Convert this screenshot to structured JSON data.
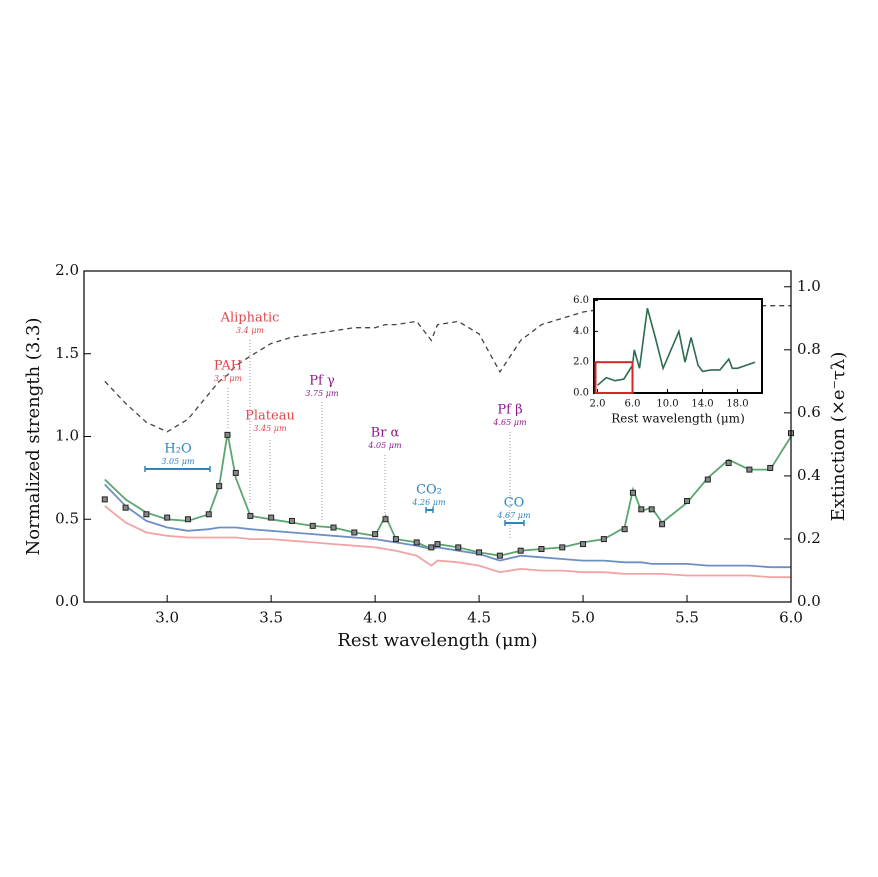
{
  "chart_data": [
    {
      "type": "line",
      "xlabel": "Rest wavelength (μm)",
      "ylabel": "Normalized strength (3.3)",
      "y2label": "Extinction (×e⁻τλ)",
      "xlim": [
        2.6,
        6.0
      ],
      "ylim": [
        0,
        2.0
      ],
      "y2lim": [
        0,
        1.05
      ],
      "xticks": [
        {
          "value": 3,
          "label": "3.0"
        },
        {
          "value": 3.5,
          "label": "3.5"
        },
        {
          "value": 4,
          "label": "4.0"
        },
        {
          "value": 4.5,
          "label": "4.5"
        },
        {
          "value": 5,
          "label": "5.0"
        },
        {
          "value": 5.5,
          "label": "5.5"
        },
        {
          "value": 6,
          "label": "6.0"
        }
      ],
      "yticks": [
        {
          "value": 0,
          "label": "0.0"
        },
        {
          "value": 0.5,
          "label": "0.5"
        },
        {
          "value": 1,
          "label": "1.0"
        },
        {
          "value": 1.5,
          "label": "1.5"
        },
        {
          "value": 2,
          "label": "2.0"
        }
      ],
      "y2ticks": [
        {
          "value": 0,
          "label": "0.0"
        },
        {
          "value": 0.2,
          "label": "0.2"
        },
        {
          "value": 0.4,
          "label": "0.4"
        },
        {
          "value": 0.6,
          "label": "0.6"
        },
        {
          "value": 0.8,
          "label": "0.8"
        },
        {
          "value": 1,
          "label": "1.0"
        }
      ],
      "x": [
        2.7,
        2.8,
        2.9,
        3.0,
        3.1,
        3.2,
        3.25,
        3.29,
        3.33,
        3.4,
        3.5,
        3.6,
        3.7,
        3.8,
        3.9,
        4.0,
        4.05,
        4.1,
        4.2,
        4.27,
        4.3,
        4.4,
        4.5,
        4.6,
        4.7,
        4.8,
        4.9,
        5.0,
        5.1,
        5.2,
        5.24,
        5.28,
        5.33,
        5.38,
        5.5,
        5.6,
        5.7,
        5.8,
        5.9,
        6.0
      ],
      "series": [
        {
          "style": "dashed",
          "axis": "y2",
          "color": "#444444",
          "values": [
            0.7,
            0.63,
            0.57,
            0.54,
            0.58,
            0.66,
            0.7,
            0.72,
            0.75,
            0.78,
            0.82,
            0.84,
            0.85,
            0.86,
            0.87,
            0.87,
            0.88,
            0.88,
            0.89,
            0.83,
            0.88,
            0.89,
            0.85,
            0.73,
            0.83,
            0.88,
            0.9,
            0.92,
            0.93,
            0.93,
            0.93,
            0.93,
            0.94,
            0.94,
            0.94,
            0.94,
            0.94,
            0.94,
            0.94,
            0.94
          ]
        },
        {
          "style": "line",
          "color": "#f4a3a3",
          "values": [
            0.58,
            0.48,
            0.42,
            0.4,
            0.39,
            0.39,
            0.39,
            0.39,
            0.39,
            0.38,
            0.38,
            0.37,
            0.36,
            0.35,
            0.34,
            0.33,
            0.32,
            0.31,
            0.28,
            0.22,
            0.25,
            0.24,
            0.22,
            0.18,
            0.2,
            0.19,
            0.19,
            0.18,
            0.18,
            0.17,
            0.17,
            0.17,
            0.17,
            0.17,
            0.16,
            0.16,
            0.16,
            0.16,
            0.15,
            0.15
          ]
        },
        {
          "style": "line",
          "color": "#6d8fc4",
          "values": [
            0.71,
            0.58,
            0.49,
            0.45,
            0.43,
            0.44,
            0.45,
            0.45,
            0.45,
            0.44,
            0.43,
            0.42,
            0.41,
            0.4,
            0.39,
            0.38,
            0.37,
            0.36,
            0.34,
            0.32,
            0.33,
            0.31,
            0.29,
            0.25,
            0.28,
            0.27,
            0.26,
            0.25,
            0.25,
            0.24,
            0.24,
            0.24,
            0.23,
            0.23,
            0.23,
            0.22,
            0.22,
            0.22,
            0.21,
            0.21
          ]
        },
        {
          "style": "line",
          "color": "#5aa66f",
          "values": [
            0.74,
            0.62,
            0.54,
            0.5,
            0.49,
            0.53,
            0.7,
            1.02,
            0.75,
            0.52,
            0.5,
            0.48,
            0.46,
            0.45,
            0.42,
            0.4,
            0.52,
            0.38,
            0.36,
            0.32,
            0.35,
            0.33,
            0.3,
            0.28,
            0.31,
            0.32,
            0.33,
            0.36,
            0.38,
            0.45,
            0.68,
            0.55,
            0.57,
            0.48,
            0.6,
            0.75,
            0.86,
            0.8,
            0.8,
            1.0
          ]
        },
        {
          "style": "markers",
          "color": "#888888",
          "values": [
            0.62,
            0.57,
            0.53,
            0.51,
            0.5,
            0.53,
            0.7,
            1.01,
            0.78,
            0.52,
            0.51,
            0.49,
            0.46,
            0.45,
            0.42,
            0.41,
            0.5,
            0.38,
            0.36,
            0.33,
            0.35,
            0.33,
            0.3,
            0.28,
            0.31,
            0.32,
            0.33,
            0.35,
            0.38,
            0.44,
            0.66,
            0.56,
            0.56,
            0.47,
            0.61,
            0.74,
            0.84,
            0.8,
            0.81,
            1.02
          ]
        }
      ],
      "annotations": [
        {
          "label": "Aliphatic",
          "note": "3.4 μm",
          "color": "#e0474c"
        },
        {
          "label": "PAH",
          "note": "3.3 μm",
          "color": "#e0474c"
        },
        {
          "label": "Plateau",
          "note": "3.45 μm",
          "color": "#e0474c"
        },
        {
          "label": "Pf γ",
          "note": "3.75 μm",
          "color": "#8b1a89"
        },
        {
          "label": "Br α",
          "note": "4.05 μm",
          "color": "#8b1a89"
        },
        {
          "label": "Pf β",
          "note": "4.65 μm",
          "color": "#8b1a89"
        },
        {
          "label": "H₂O",
          "note": "3.05 μm",
          "color": "#2e86c1"
        },
        {
          "label": "CO₂",
          "note": "4.26 μm",
          "color": "#2e86c1"
        },
        {
          "label": "CO",
          "note": "4.67 μm",
          "color": "#2e86c1"
        }
      ]
    },
    {
      "type": "line",
      "xlabel": "Rest wavelength (μm)",
      "xlim": [
        1.6,
        20.8
      ],
      "ylim": [
        0,
        6.1
      ],
      "xticks": [
        {
          "value": 2,
          "label": "2.0"
        },
        {
          "value": 6,
          "label": "6.0"
        },
        {
          "value": 10,
          "label": "10.0"
        },
        {
          "value": 14,
          "label": "14.0"
        },
        {
          "value": 18,
          "label": "18.0"
        }
      ],
      "yticks": [
        {
          "value": 0,
          "label": "0.0"
        },
        {
          "value": 2,
          "label": "2.0"
        },
        {
          "value": 4,
          "label": "4.0"
        },
        {
          "value": 6,
          "label": "6.0"
        }
      ],
      "x": [
        2,
        3,
        4,
        5,
        6,
        6.2,
        6.8,
        7.7,
        8.6,
        9.5,
        11.3,
        12,
        12.7,
        13.5,
        14,
        15,
        16,
        17,
        17.4,
        18,
        19,
        20
      ],
      "series": [
        {
          "style": "line",
          "color": "#2d6b4f",
          "values": [
            0.5,
            1.0,
            0.8,
            0.9,
            1.8,
            2.8,
            1.6,
            5.5,
            3.6,
            1.6,
            4.0,
            2.0,
            3.6,
            1.8,
            1.4,
            1.5,
            1.5,
            2.2,
            1.6,
            1.6,
            1.8,
            2.0
          ]
        }
      ]
    }
  ]
}
